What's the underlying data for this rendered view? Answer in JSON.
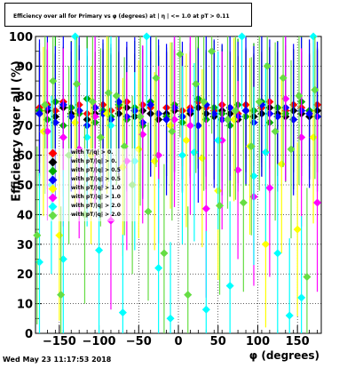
{
  "title": "Efficiency over all for Primary vs φ (degrees) at |  η | <= 1.0 at pT > 0.11",
  "footer": "Wed May 23 11:17:53 2018",
  "chart_data": {
    "type": "scatter",
    "xlabel": "φ (degrees)",
    "ylabel": "Efficiency over all (%)",
    "xlim": [
      -180,
      180
    ],
    "ylim": [
      0,
      100
    ],
    "xticks": [
      -150,
      -100,
      -50,
      0,
      50,
      100,
      150
    ],
    "yticks": [
      0,
      10,
      20,
      30,
      40,
      50,
      60,
      70,
      80,
      90,
      100
    ],
    "grid": true,
    "legend_position": "middle-left",
    "series": [
      {
        "name": "with T/|q| > 0.",
        "color": "#ff0000",
        "x": [
          -175,
          -165,
          -155,
          -145,
          -135,
          -125,
          -115,
          -105,
          -95,
          -85,
          -75,
          -65,
          -55,
          -45,
          -35,
          -25,
          -15,
          -5,
          5,
          15,
          25,
          35,
          45,
          55,
          65,
          75,
          85,
          95,
          105,
          115,
          125,
          135,
          145,
          155,
          165,
          175
        ],
        "y": [
          76,
          77,
          75,
          78,
          76,
          77,
          74,
          76,
          77,
          75,
          76,
          78,
          75,
          77,
          76,
          74,
          76,
          77,
          75,
          76,
          78,
          76,
          75,
          77,
          76,
          74,
          77,
          75,
          76,
          78,
          76,
          75,
          77,
          76,
          75,
          77
        ]
      },
      {
        "name": "with pT/|q| > 0.",
        "color": "#000000",
        "x": [
          -175,
          -165,
          -155,
          -145,
          -135,
          -125,
          -115,
          -105,
          -95,
          -85,
          -75,
          -65,
          -55,
          -45,
          -35,
          -25,
          -15,
          -5,
          5,
          15,
          25,
          35,
          45,
          55,
          65,
          75,
          85,
          95,
          105,
          115,
          125,
          135,
          145,
          155,
          165,
          175
        ],
        "y": [
          74,
          75,
          73,
          76,
          74,
          75,
          72,
          74,
          75,
          73,
          74,
          76,
          73,
          75,
          74,
          72,
          74,
          75,
          73,
          74,
          76,
          74,
          73,
          75,
          74,
          72,
          75,
          73,
          74,
          76,
          74,
          73,
          75,
          74,
          73,
          75
        ]
      },
      {
        "name": "with pT/|q| > 0.5",
        "color": "#00aa00",
        "x": [
          -175,
          -165,
          -155,
          -145,
          -135,
          -125,
          -115,
          -105,
          -95,
          -85,
          -75,
          -65,
          -55,
          -45,
          -35,
          -25,
          -15,
          -5,
          5,
          15,
          25,
          35,
          45,
          55,
          65,
          75,
          85,
          95,
          105,
          115,
          125,
          135,
          145,
          155,
          165,
          175
        ],
        "y": [
          75,
          72,
          78,
          70,
          76,
          74,
          79,
          71,
          75,
          73,
          77,
          72,
          76,
          70,
          78,
          74,
          73,
          77,
          71,
          75,
          79,
          72,
          76,
          74,
          70,
          77,
          73,
          75,
          78,
          71,
          76,
          74,
          72,
          78,
          75,
          73
        ]
      },
      {
        "name": "with pT/|q| > 0.5",
        "color": "#0000ff",
        "x": [
          -175,
          -165,
          -155,
          -145,
          -135,
          -125,
          -115,
          -105,
          -95,
          -85,
          -75,
          -65,
          -55,
          -45,
          -35,
          -25,
          -15,
          -5,
          5,
          15,
          25,
          35,
          45,
          55,
          65,
          75,
          85,
          95,
          105,
          115,
          125,
          135,
          145,
          155,
          165,
          175
        ],
        "y": [
          74,
          76,
          71,
          77,
          73,
          75,
          70,
          76,
          74,
          72,
          78,
          73,
          75,
          71,
          77,
          74,
          72,
          76,
          73,
          75,
          70,
          77,
          74,
          72,
          76,
          73,
          75,
          71,
          77,
          74,
          73,
          76,
          72,
          75,
          74,
          73
        ]
      },
      {
        "name": "with pT/|q| > 1.0",
        "color": "#ffff00",
        "x": [
          -170,
          -150,
          -130,
          -110,
          -90,
          -70,
          -50,
          -30,
          -10,
          10,
          30,
          50,
          70,
          90,
          110,
          130,
          150,
          170
        ],
        "y": [
          68,
          33,
          71,
          60,
          74,
          56,
          62,
          58,
          70,
          65,
          59,
          48,
          72,
          63,
          30,
          57,
          35,
          66
        ]
      },
      {
        "name": "with pT/|q| > 1.0",
        "color": "#ff00ff",
        "x": [
          -165,
          -145,
          -125,
          -105,
          -85,
          -65,
          -45,
          -25,
          -5,
          15,
          35,
          55,
          75,
          95,
          115,
          135,
          155,
          175
        ],
        "y": [
          68,
          66,
          62,
          73,
          38,
          58,
          67,
          60,
          72,
          70,
          42,
          65,
          55,
          46,
          49,
          79,
          66,
          44
        ]
      },
      {
        "name": "with pT/|q| > 2.0",
        "color": "#00ffff",
        "x": [
          -175,
          -160,
          -145,
          -130,
          -115,
          -100,
          -85,
          -70,
          -55,
          -40,
          -25,
          -10,
          5,
          20,
          35,
          50,
          65,
          80,
          95,
          110,
          125,
          140,
          155,
          170
        ],
        "y": [
          24,
          50,
          25,
          100,
          66,
          28,
          70,
          7,
          58,
          100,
          22,
          5,
          60,
          61,
          8,
          65,
          16,
          100,
          53,
          61,
          27,
          6,
          12,
          100
        ]
      },
      {
        "name": "with pT/|q| > 2.0",
        "color": "#66dd44",
        "x": [
          -178,
          -168,
          -158,
          -148,
          -138,
          -128,
          -118,
          -108,
          -98,
          -88,
          -78,
          -68,
          -58,
          -48,
          -38,
          -28,
          -18,
          -8,
          2,
          12,
          22,
          32,
          42,
          52,
          62,
          72,
          82,
          92,
          102,
          112,
          122,
          132,
          142,
          152,
          162,
          172
        ],
        "y": [
          33,
          77,
          85,
          13,
          60,
          84,
          40,
          78,
          66,
          81,
          80,
          63,
          50,
          73,
          41,
          86,
          27,
          68,
          94,
          13,
          84,
          78,
          95,
          43,
          72,
          75,
          44,
          63,
          78,
          90,
          68,
          86,
          62,
          80,
          19,
          82
        ]
      }
    ]
  }
}
